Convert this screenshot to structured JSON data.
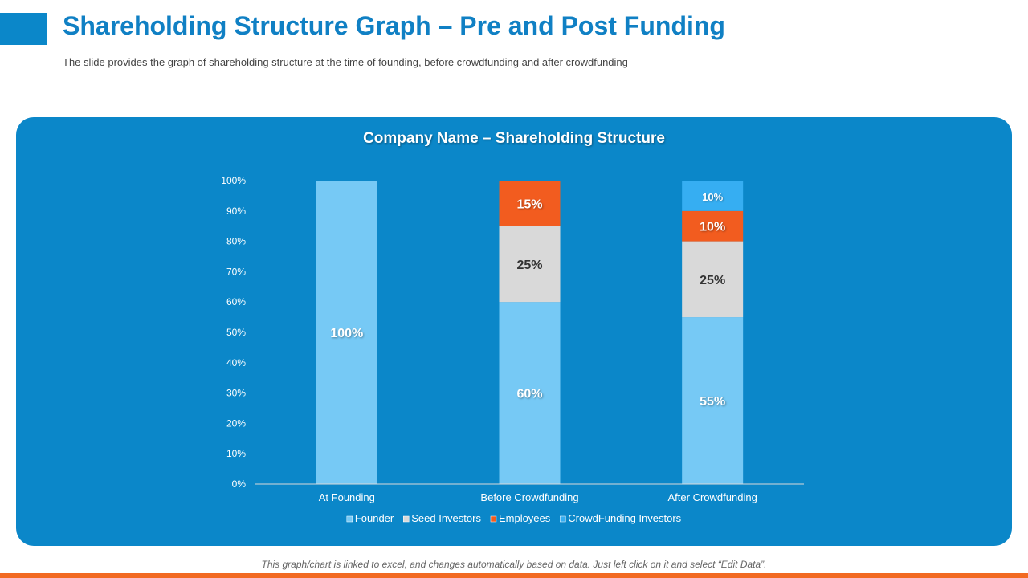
{
  "header": {
    "title": "Shareholding Structure Graph – Pre and Post Funding",
    "subtitle": "The slide provides the graph of shareholding structure at the time of founding, before crowdfunding and after crowdfunding"
  },
  "footer": {
    "note": "This graph/chart is linked to excel, and changes automatically based on data. Just left click on it and select “Edit Data”."
  },
  "colors": {
    "brand": "#0b87c9",
    "title": "#1080c4",
    "accent_bar": "#f26a22"
  },
  "chart_data": {
    "type": "bar",
    "stacked": true,
    "title": "Company Name – Shareholding Structure",
    "categories": [
      "At Founding",
      "Before Crowdfunding",
      "After Crowdfunding"
    ],
    "y_ticks": [
      "0%",
      "10%",
      "20%",
      "30%",
      "40%",
      "50%",
      "60%",
      "70%",
      "80%",
      "90%",
      "100%"
    ],
    "ylim": [
      0,
      100
    ],
    "legend_position": "bottom",
    "series": [
      {
        "name": "Founder",
        "values": [
          100,
          60,
          55
        ],
        "labels": [
          "100%",
          "60%",
          "55%"
        ],
        "color": "#76c9f5",
        "label_color": "#ffffff"
      },
      {
        "name": "Seed Investors",
        "values": [
          0,
          25,
          25
        ],
        "labels": [
          "",
          "25%",
          "25%"
        ],
        "color": "#d9d9d9",
        "label_color": "#333333"
      },
      {
        "name": "Employees",
        "values": [
          0,
          15,
          10
        ],
        "labels": [
          "",
          "15%",
          "10%"
        ],
        "color": "#f25c1f",
        "label_color": "#ffffff"
      },
      {
        "name": "CrowdFunding Investors",
        "values": [
          0,
          0,
          10
        ],
        "labels": [
          "",
          "",
          "10%"
        ],
        "color": "#36aef2",
        "label_color": "#ffffff"
      }
    ]
  }
}
